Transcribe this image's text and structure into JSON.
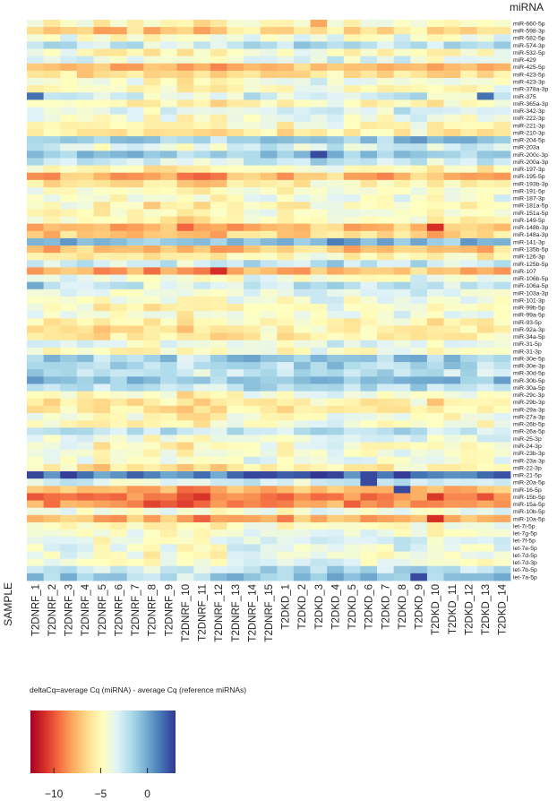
{
  "chart_data": {
    "type": "heatmap",
    "title": "",
    "row_axis_title": "miRNA",
    "column_axis_title": "SAMPLE",
    "columns": [
      "T2DNRF_1",
      "T2DNRF_2",
      "T2DNRF_3",
      "T2DNRF_4",
      "T2DNRF_5",
      "T2DNRF_6",
      "T2DNRF_7",
      "T2DNRF_8",
      "T2DNRF_9",
      "T2DNRF_10",
      "T2DNRF_11",
      "T2DNRF_12",
      "T2DNRF_13",
      "T2DNRF_14",
      "T2DNRF_15",
      "T2DKD_1",
      "T2DKD_2",
      "T2DKD_3",
      "T2DKD_4",
      "T2DKD_5",
      "T2DKD_6",
      "T2DKD_7",
      "T2DKD_8",
      "T2DKD_9",
      "T2DKD_10",
      "T2DKD_11",
      "T2DKD_12",
      "T2DKD_13",
      "T2DKD_14"
    ],
    "rows": [
      "miR-660-5p",
      "miR-598-3p",
      "miR-582-5p",
      "miR-574-3p",
      "miR-532-5p",
      "miR-429",
      "miR-425-5p",
      "miR-423-5p",
      "miR-423-3p",
      "miR-378a-3p",
      "miR-375",
      "miR-365a-3p",
      "miR-342-3p",
      "miR-222-3p",
      "miR-221-3p",
      "miR-210-3p",
      "miR-204-5p",
      "miR-203a",
      "miR-200c-3p",
      "miR-200a-3p",
      "miR-197-3p",
      "miR-195-5p",
      "miR-193b-3p",
      "miR-191-5p",
      "miR-187-3p",
      "miR-181a-5p",
      "miR-151a-5p",
      "miR-149-5p",
      "miR-148b-3p",
      "miR-148a-3p",
      "miR-141-3p",
      "miR-135b-5p",
      "miR-126-3p",
      "miR-125b-5p",
      "miR-107",
      "miR-106b-5p",
      "miR-106a-5p",
      "miR-103a-3p",
      "miR-101-3p",
      "miR-99b-5p",
      "miR-99a-5p",
      "miR-93-5p",
      "miR-92a-3p",
      "miR-34a-5p",
      "miR-31-5p",
      "miR-31-3p",
      "miR-30e-5p",
      "miR-30e-3p",
      "miR-30d-5p",
      "miR-30b-5p",
      "miR-30a-5p",
      "miR-29c-3p",
      "miR-29b-3p",
      "miR-29a-3p",
      "miR-27a-3p",
      "miR-26b-5p",
      "miR-26a-5p",
      "miR-25-3p",
      "miR-24-3p",
      "miR-23b-3p",
      "miR-23a-3p",
      "miR-22-3p",
      "miR-21-5p",
      "miR-20a-5p",
      "miR-16-5p",
      "miR-15b-5p",
      "miR-15a-5p",
      "miR-10b-5p",
      "miR-10a-5p",
      "let-7i-5p",
      "let-7g-5p",
      "let-7f-5p",
      "let-7e-5p",
      "let-7d-5p",
      "let-7d-3p",
      "let-7b-5p",
      "let-7a-5p"
    ],
    "row_baselines": [
      -4.5,
      -6.5,
      -4,
      -2,
      -4.5,
      -3.5,
      -7,
      -6,
      -4,
      -4.5,
      -3,
      -5,
      -3,
      -4,
      -5,
      -5.5,
      -1,
      -3,
      -1,
      -2.5,
      -5,
      -7.5,
      -5.5,
      -4.5,
      -4,
      -5,
      -4.5,
      -5,
      -7.5,
      -6.5,
      -0.5,
      -7,
      -5,
      -2.5,
      -7.5,
      -4,
      -2.5,
      -3.5,
      -4,
      -4.5,
      -4,
      -5,
      -5.5,
      -5.5,
      -3.5,
      -4.5,
      -1,
      -1.5,
      -2,
      -0.5,
      -2,
      -4.5,
      -5.5,
      -5.5,
      -4.5,
      -4.5,
      -2,
      -3.5,
      -4.5,
      -4,
      -4,
      -5.5,
      1.5,
      -3,
      -7.5,
      -9,
      -8.5,
      -4,
      -7.5,
      -4.5,
      -4,
      -3.5,
      -3.5,
      -4,
      -4,
      -2,
      -1
    ],
    "column_offsets": [
      0,
      0.4,
      -0.2,
      0.1,
      0.8,
      0.5,
      0.2,
      0.9,
      0.3,
      1.3,
      1.0,
      0.8,
      0.1,
      -0.4,
      -0.2,
      0.5,
      0,
      -0.5,
      -0.6,
      0.1,
      0,
      0.2,
      -0.3,
      -0.5,
      0.6,
      0.2,
      0.1,
      0.3,
      -0.2
    ],
    "special_cells": [
      {
        "row": "miR-200c-3p",
        "col": "T2DKD_3",
        "value": 2.5
      },
      {
        "row": "miR-375",
        "col": "T2DNRF_1",
        "value": 1.5
      },
      {
        "row": "miR-375",
        "col": "T2DKD_13",
        "value": 1.5
      },
      {
        "row": "miR-660-5p",
        "col": "T2DKD_3",
        "value": -8
      },
      {
        "row": "miR-107",
        "col": "T2DNRF_12",
        "value": -11
      },
      {
        "row": "miR-16-5p",
        "col": "T2DKD_8",
        "value": 2.5
      },
      {
        "row": "miR-20a-5p",
        "col": "T2DKD_6",
        "value": 2.5
      },
      {
        "row": "let-7a-5p",
        "col": "T2DKD_9",
        "value": 2.5
      },
      {
        "row": "miR-10a-5p",
        "col": "T2DKD_10",
        "value": -11
      },
      {
        "row": "miR-148b-3p",
        "col": "T2DKD_10",
        "value": -11
      },
      {
        "row": "miR-106a-5p",
        "col": "T2DNRF_1",
        "value": 0
      }
    ],
    "color_scale": {
      "label": "deltaCq=average Cq (miRNA) - average Cq (reference miRNAs)",
      "min": -12.5,
      "max": 3,
      "ticks": [
        -10,
        -5,
        0
      ],
      "tick_labels": [
        "−10",
        "−5",
        "0"
      ],
      "colors": [
        "#a50026",
        "#d73027",
        "#f46d43",
        "#fdae61",
        "#fee090",
        "#ffffbf",
        "#e0f3f8",
        "#abd9e9",
        "#74add1",
        "#4575b4",
        "#313695"
      ]
    },
    "legend_placement": "bottom-left"
  }
}
